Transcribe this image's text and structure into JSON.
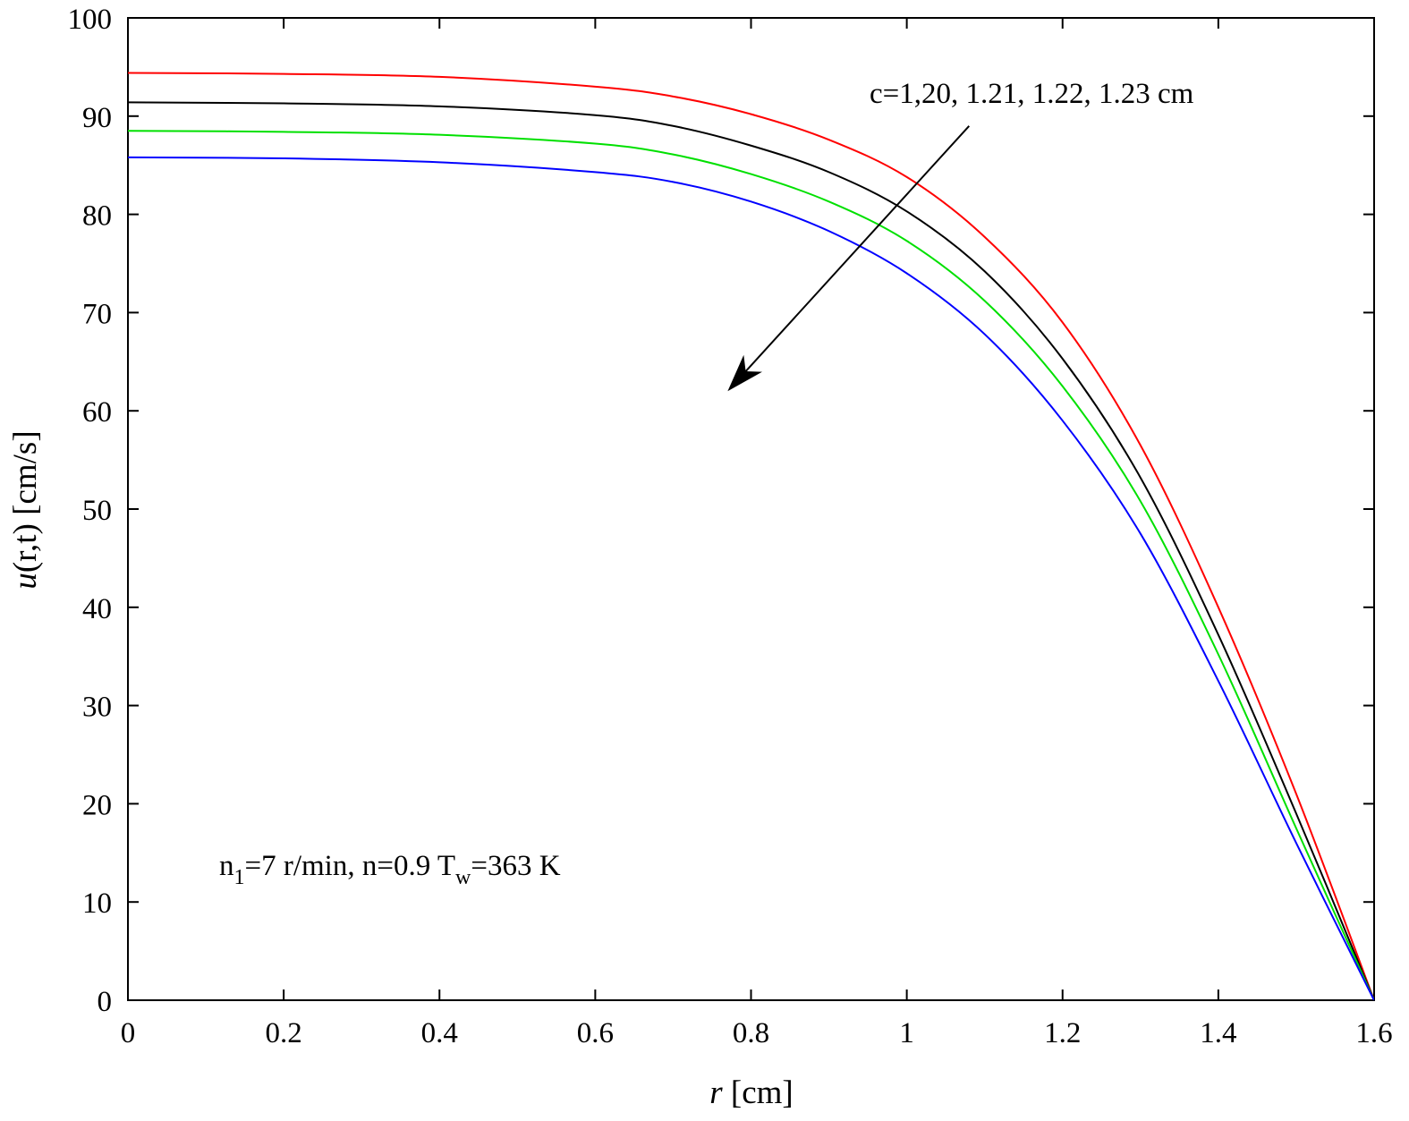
{
  "chart_data": {
    "type": "line",
    "xlabel": {
      "var": "r",
      "rest": " [cm]"
    },
    "ylabel": {
      "var": "u",
      "rest": "(r,t) [cm/s]"
    },
    "xlim": [
      0,
      1.6
    ],
    "ylim": [
      0,
      100
    ],
    "xticks": [
      0,
      0.2,
      0.4,
      0.6,
      0.8,
      1,
      1.2,
      1.4,
      1.6
    ],
    "xtick_labels": [
      "0",
      "0.2",
      "0.4",
      "0.6",
      "0.8",
      "1",
      "1.2",
      "1.4",
      "1.6"
    ],
    "yticks": [
      0,
      10,
      20,
      30,
      40,
      50,
      60,
      70,
      80,
      90,
      100
    ],
    "ytick_labels": [
      "0",
      "10",
      "20",
      "30",
      "40",
      "50",
      "60",
      "70",
      "80",
      "90",
      "100"
    ],
    "grid": false,
    "series": [
      {
        "color": "#ff0000",
        "x": [
          0,
          0.2,
          0.4,
          0.6,
          0.7,
          0.8,
          0.9,
          1.0,
          1.1,
          1.2,
          1.3,
          1.4,
          1.5,
          1.6
        ],
        "y": [
          94.4,
          94.3,
          94.0,
          93.0,
          92.0,
          90.2,
          87.6,
          83.8,
          77.7,
          69.0,
          56.5,
          40.0,
          21.0,
          0
        ]
      },
      {
        "color": "#000000",
        "x": [
          0,
          0.2,
          0.4,
          0.6,
          0.7,
          0.8,
          0.9,
          1.0,
          1.1,
          1.2,
          1.3,
          1.4,
          1.5,
          1.6
        ],
        "y": [
          91.4,
          91.3,
          91.0,
          90.1,
          89.0,
          87.0,
          84.3,
          80.3,
          74.2,
          65.3,
          53.2,
          37.2,
          19.0,
          0
        ]
      },
      {
        "color": "#00e000",
        "x": [
          0,
          0.2,
          0.4,
          0.6,
          0.7,
          0.8,
          0.9,
          1.0,
          1.1,
          1.2,
          1.3,
          1.4,
          1.5,
          1.6
        ],
        "y": [
          88.5,
          88.4,
          88.1,
          87.2,
          86.1,
          84.1,
          81.3,
          77.3,
          71.2,
          62.5,
          50.8,
          35.2,
          17.5,
          0
        ]
      },
      {
        "color": "#0000ff",
        "x": [
          0,
          0.2,
          0.4,
          0.6,
          0.7,
          0.8,
          0.9,
          1.0,
          1.1,
          1.2,
          1.3,
          1.4,
          1.5,
          1.6
        ],
        "y": [
          85.8,
          85.7,
          85.3,
          84.3,
          83.3,
          81.3,
          78.3,
          74.0,
          67.8,
          59.0,
          47.5,
          32.5,
          16.0,
          0
        ]
      }
    ],
    "annotations": {
      "c_label": "c=1,20, 1.21, 1.22, 1.23 cm",
      "arrow": {
        "from": [
          1.08,
          89.0
        ],
        "to": [
          0.77,
          62.0
        ]
      },
      "conditions": {
        "n_base": "n",
        "n_sub": "1",
        "mid": "=7 r/min, n=0.9 T",
        "t_sub": "w",
        "end": "=363 K"
      }
    }
  }
}
